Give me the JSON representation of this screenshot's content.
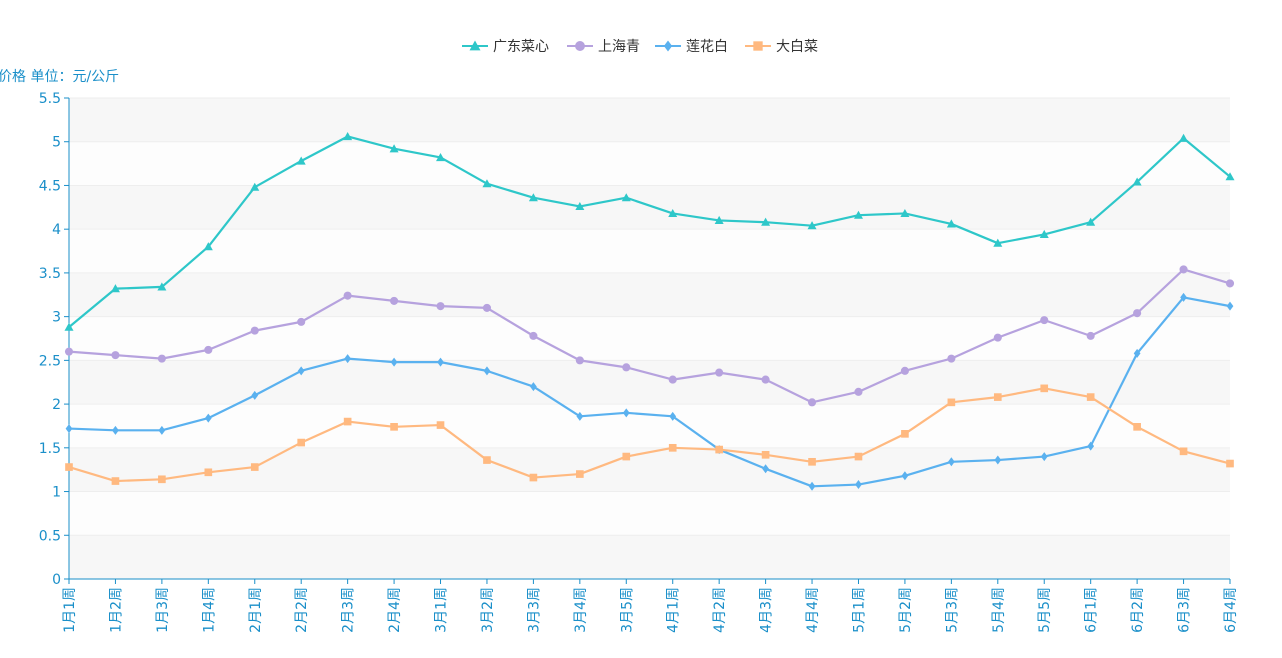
{
  "chart_data": {
    "type": "line",
    "ylabel": "价格 单位：元/公斤",
    "ylim": [
      0,
      5.5
    ],
    "yticks": [
      "0",
      "0.5",
      "1",
      "1.5",
      "2",
      "2.5",
      "3",
      "3.5",
      "4",
      "4.5",
      "5",
      "5.5"
    ],
    "grid": true,
    "legend_position": "top-center",
    "categories": [
      "1月1周",
      "1月2周",
      "1月3周",
      "1月4周",
      "2月1周",
      "2月2周",
      "2月3周",
      "2月4周",
      "3月1周",
      "3月2周",
      "3月3周",
      "3月4周",
      "3月5周",
      "4月1周",
      "4月2周",
      "4月3周",
      "4月4周",
      "5月1周",
      "5月2周",
      "5月3周",
      "5月4周",
      "5月5周",
      "6月1周",
      "6月2周",
      "6月3周",
      "6月4周"
    ],
    "series": [
      {
        "name": "广东菜心",
        "color": "#2ec7c9",
        "marker": "triangle",
        "values": [
          2.88,
          3.32,
          3.34,
          3.8,
          4.48,
          4.78,
          5.06,
          4.92,
          4.82,
          4.52,
          4.36,
          4.26,
          4.36,
          4.18,
          4.1,
          4.08,
          4.04,
          4.16,
          4.18,
          4.06,
          3.84,
          3.94,
          4.08,
          4.54,
          5.04,
          4.6
        ]
      },
      {
        "name": "上海青",
        "color": "#b6a2de",
        "marker": "circle",
        "values": [
          2.6,
          2.56,
          2.52,
          2.62,
          2.84,
          2.94,
          3.24,
          3.18,
          3.12,
          3.1,
          2.78,
          2.5,
          2.42,
          2.28,
          2.36,
          2.28,
          2.02,
          2.14,
          2.38,
          2.52,
          2.76,
          2.96,
          2.78,
          3.04,
          3.54,
          3.38
        ]
      },
      {
        "name": "莲花白",
        "color": "#5ab1ef",
        "marker": "diamond",
        "values": [
          1.72,
          1.7,
          1.7,
          1.84,
          2.1,
          2.38,
          2.52,
          2.48,
          2.48,
          2.38,
          2.2,
          1.86,
          1.9,
          1.86,
          1.48,
          1.26,
          1.06,
          1.08,
          1.18,
          1.34,
          1.36,
          1.4,
          1.52,
          2.58,
          3.22,
          3.12
        ]
      },
      {
        "name": "大白菜",
        "color": "#ffb980",
        "marker": "square",
        "values": [
          1.28,
          1.12,
          1.14,
          1.22,
          1.28,
          1.56,
          1.8,
          1.74,
          1.76,
          1.36,
          1.16,
          1.2,
          1.4,
          1.5,
          1.48,
          1.42,
          1.34,
          1.4,
          1.66,
          2.02,
          2.08,
          2.18,
          2.08,
          1.74,
          1.46,
          1.32
        ]
      }
    ]
  }
}
